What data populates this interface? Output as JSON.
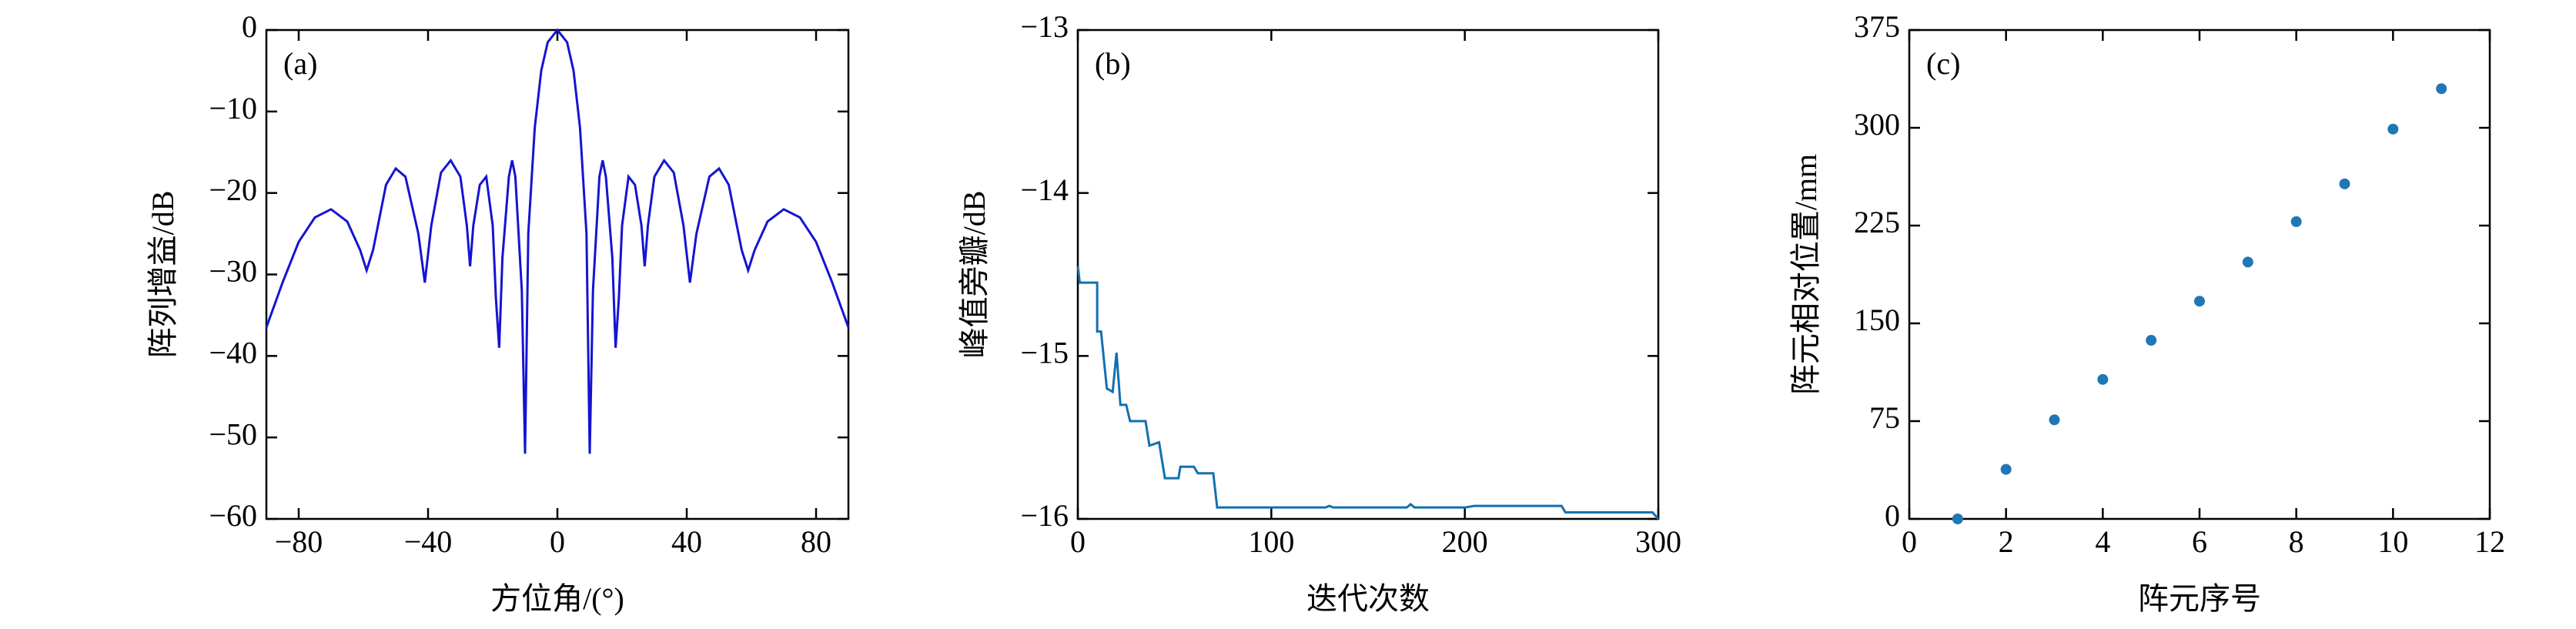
{
  "chart_data": [
    {
      "type": "line",
      "annotation": "(a)",
      "xlabel": "方位角/(°)",
      "ylabel": "阵列增益/dB",
      "x": [
        -90,
        -85,
        -80,
        -75,
        -70,
        -65,
        -61,
        -59,
        -57,
        -53,
        -50,
        -47,
        -43,
        -41,
        -39,
        -36,
        -33,
        -30,
        -28,
        -27,
        -26,
        -24,
        -22,
        -20,
        -19,
        -18,
        -17,
        -15,
        -14,
        -13,
        -11,
        -10,
        -9,
        -7,
        -5,
        -3,
        0,
        3,
        5,
        7,
        9,
        10,
        11,
        13,
        14,
        15,
        17,
        18,
        19,
        20,
        22,
        24,
        26,
        27,
        28,
        30,
        33,
        36,
        39,
        41,
        43,
        47,
        50,
        53,
        57,
        59,
        61,
        65,
        70,
        75,
        80,
        85,
        90
      ],
      "series": [
        {
          "color": "#1414d2",
          "values": [
            -36.5,
            -31,
            -26,
            -23,
            -22,
            -23.5,
            -27,
            -29.5,
            -27,
            -19,
            -17,
            -18,
            -25,
            -31,
            -24,
            -17.5,
            -16,
            -18,
            -24,
            -29,
            -24,
            -19,
            -18,
            -24,
            -33,
            -39,
            -28,
            -18,
            -16,
            -18,
            -32,
            -52,
            -25,
            -12,
            -5,
            -1.5,
            0,
            -1.5,
            -5,
            -12,
            -25,
            -52,
            -32,
            -18,
            -16,
            -18,
            -28,
            -39,
            -33,
            -24,
            -18,
            -19,
            -24,
            -29,
            -24,
            -18,
            -16,
            -17.5,
            -24,
            -31,
            -25,
            -18,
            -17,
            -19,
            -27,
            -29.5,
            -27,
            -23.5,
            -22,
            -23,
            -26,
            -31,
            -36.5
          ]
        }
      ],
      "xlim": [
        -90,
        90
      ],
      "xticks": [
        {
          "value": -80,
          "label": "−80"
        },
        {
          "value": -40,
          "label": "−40"
        },
        0,
        40,
        80
      ],
      "ylim": [
        -60,
        0
      ],
      "yticks": [
        {
          "value": -60,
          "label": "−60"
        },
        {
          "value": -50,
          "label": "−50"
        },
        {
          "value": -40,
          "label": "−40"
        },
        {
          "value": -30,
          "label": "−30"
        },
        {
          "value": -20,
          "label": "−20"
        },
        {
          "value": -10,
          "label": "−10"
        },
        0
      ]
    },
    {
      "type": "line",
      "annotation": "(b)",
      "xlabel": "迭代次数",
      "ylabel": "峰值旁瓣/dB",
      "x": [
        0,
        1,
        10,
        10,
        12,
        15,
        18,
        20,
        22,
        25,
        27,
        35,
        37,
        42,
        45,
        52,
        53,
        60,
        62,
        70,
        72,
        128,
        130,
        132,
        170,
        172,
        174,
        200,
        205,
        250,
        252,
        297,
        300
      ],
      "series": [
        {
          "color": "#1170b0",
          "values": [
            -14.45,
            -14.55,
            -14.55,
            -14.85,
            -14.85,
            -15.2,
            -15.22,
            -14.98,
            -15.3,
            -15.3,
            -15.4,
            -15.4,
            -15.55,
            -15.53,
            -15.75,
            -15.75,
            -15.68,
            -15.68,
            -15.72,
            -15.72,
            -15.93,
            -15.93,
            -15.92,
            -15.93,
            -15.93,
            -15.91,
            -15.93,
            -15.93,
            -15.92,
            -15.92,
            -15.96,
            -15.96,
            -16
          ]
        }
      ],
      "xlim": [
        0,
        300
      ],
      "xticks": [
        0,
        100,
        200,
        300
      ],
      "ylim": [
        -16,
        -13
      ],
      "yticks": [
        {
          "value": -16,
          "label": "−16"
        },
        {
          "value": -15,
          "label": "−15"
        },
        {
          "value": -14,
          "label": "−14"
        },
        {
          "value": -13,
          "label": "−13"
        }
      ]
    },
    {
      "type": "scatter",
      "annotation": "(c)",
      "xlabel": "阵元序号",
      "ylabel": "阵元相对位置/mm",
      "x": [
        1,
        2,
        3,
        4,
        5,
        6,
        7,
        8,
        9,
        10,
        11
      ],
      "series": [
        {
          "color": "#1f77b4",
          "values": [
            0,
            38,
            76,
            107,
            137,
            167,
            197,
            228,
            257,
            299,
            330
          ]
        }
      ],
      "xlim": [
        0,
        12
      ],
      "xticks": [
        0,
        2,
        4,
        6,
        8,
        10,
        12
      ],
      "ylim": [
        0,
        375
      ],
      "yticks": [
        0,
        75,
        150,
        225,
        300,
        375
      ]
    }
  ]
}
